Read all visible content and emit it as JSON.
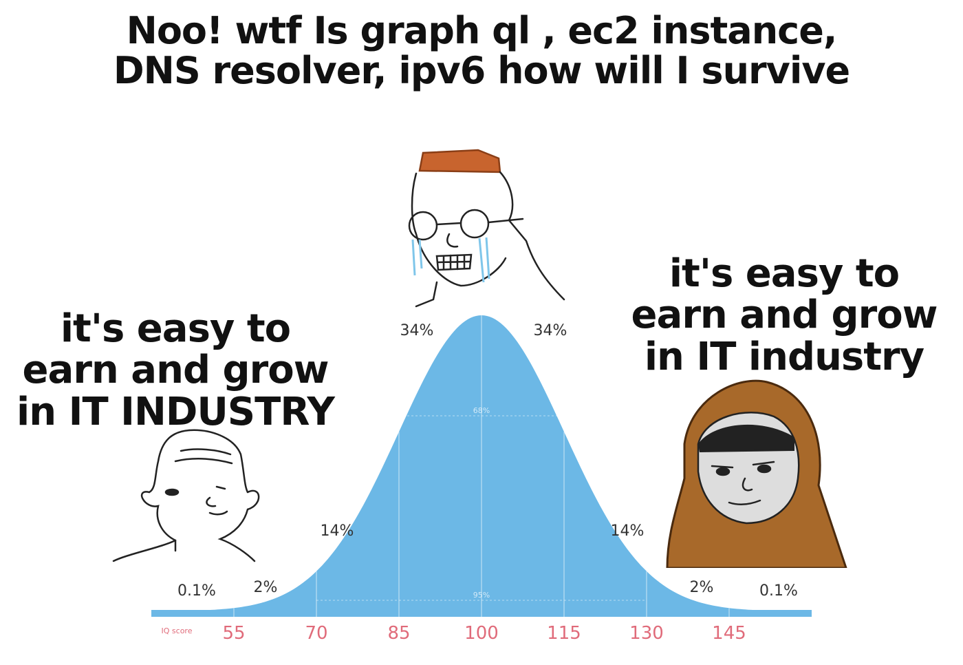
{
  "captions": {
    "top": [
      "Noo! wtf Is graph ql , ec2 instance,",
      "DNS resolver, ipv6 how will I survive"
    ],
    "left": [
      "it's easy to",
      "earn and grow",
      "in IT INDUSTRY"
    ],
    "right": [
      "it's easy to",
      "earn and grow",
      "in IT industry"
    ]
  },
  "colors": {
    "curve": "#6cb8e6",
    "curve_dark": "#5aaedf",
    "hair": "#c8642e",
    "hood": "#a8692a",
    "text": "#111111"
  },
  "chart_data": {
    "type": "area",
    "x_axis_label": "IQ score",
    "x_ticks": [
      55,
      70,
      85,
      100,
      115,
      130,
      145
    ],
    "mean": 100,
    "sd": 15,
    "band_labels": [
      {
        "from": 40,
        "to": 55,
        "label": "0.1%"
      },
      {
        "from": 55,
        "to": 70,
        "label": "2%"
      },
      {
        "from": 70,
        "to": 85,
        "label": "14%"
      },
      {
        "from": 85,
        "to": 100,
        "label": "34%"
      },
      {
        "from": 100,
        "to": 115,
        "label": "34%"
      },
      {
        "from": 115,
        "to": 130,
        "label": "14%"
      },
      {
        "from": 130,
        "to": 145,
        "label": "2%"
      },
      {
        "from": 145,
        "to": 160,
        "label": "0.1%"
      }
    ],
    "range_labels": [
      {
        "from": 85,
        "to": 115,
        "label": "68%"
      },
      {
        "from": 70,
        "to": 130,
        "label": "95%"
      }
    ]
  }
}
